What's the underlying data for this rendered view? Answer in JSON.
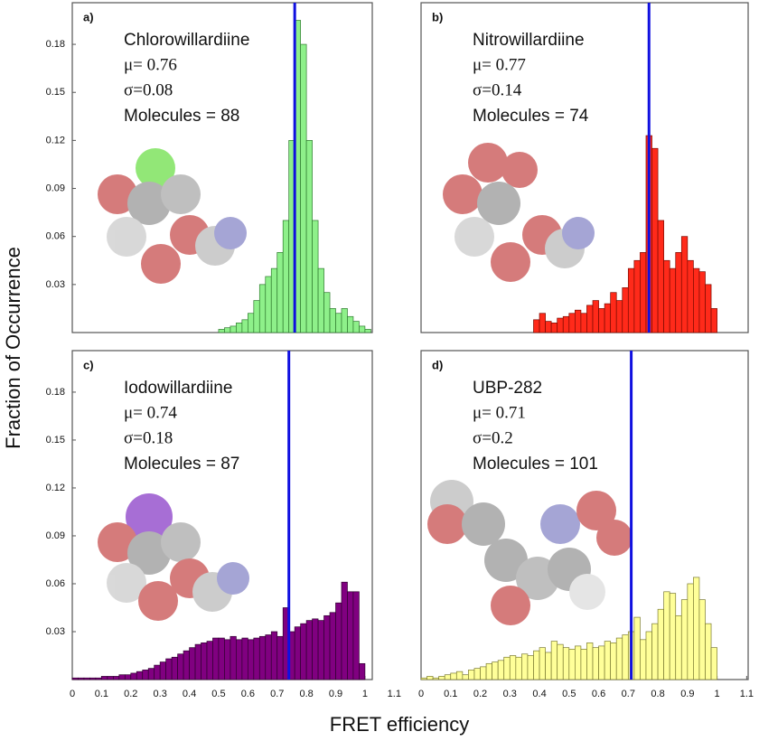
{
  "ylabel": "Fraction of Occurrence",
  "xlabel": "FRET efficiency",
  "chart_data": [
    {
      "type": "histogram",
      "panel": "a)",
      "lines": [
        "Chlorowillardiine",
        "μ= 0.76",
        "σ=0.08",
        "Molecules = 88"
      ],
      "color": "#8ef08a",
      "edge": "#2e7a2e",
      "vline": 0.76,
      "vline_color": "#1010e0",
      "bins": [
        0.5,
        0.52,
        0.54,
        0.56,
        0.58,
        0.6,
        0.62,
        0.64,
        0.66,
        0.68,
        0.7,
        0.72,
        0.74,
        0.76,
        0.78,
        0.8,
        0.82,
        0.84,
        0.86,
        0.88,
        0.9,
        0.92,
        0.94,
        0.96,
        0.98,
        1.0,
        1.02
      ],
      "values": [
        0.002,
        0.003,
        0.004,
        0.006,
        0.008,
        0.012,
        0.02,
        0.03,
        0.035,
        0.04,
        0.05,
        0.07,
        0.12,
        0.195,
        0.18,
        0.12,
        0.07,
        0.04,
        0.025,
        0.015,
        0.012,
        0.015,
        0.01,
        0.007,
        0.004,
        0.002
      ],
      "xlim": [
        0,
        1.025
      ],
      "ylim": [
        0,
        0.206
      ],
      "yticks": [
        0.03,
        0.06,
        0.09,
        0.12,
        0.15,
        0.18
      ]
    },
    {
      "type": "histogram",
      "panel": "b)",
      "lines": [
        "Nitrowillardiine",
        "μ= 0.77",
        "σ=0.14",
        "Molecules = 74"
      ],
      "color": "#ff2a1a",
      "edge": "#7a0a00",
      "vline": 0.77,
      "vline_color": "#1010e0",
      "bins": [
        0.38,
        0.4,
        0.42,
        0.44,
        0.46,
        0.48,
        0.5,
        0.52,
        0.54,
        0.56,
        0.58,
        0.6,
        0.62,
        0.64,
        0.66,
        0.68,
        0.7,
        0.72,
        0.74,
        0.76,
        0.78,
        0.8,
        0.82,
        0.84,
        0.86,
        0.88,
        0.9,
        0.92,
        0.94,
        0.96,
        0.98,
        1.0
      ],
      "values": [
        0.008,
        0.012,
        0.007,
        0.006,
        0.009,
        0.01,
        0.012,
        0.014,
        0.012,
        0.017,
        0.02,
        0.015,
        0.018,
        0.025,
        0.02,
        0.028,
        0.04,
        0.045,
        0.05,
        0.123,
        0.115,
        0.07,
        0.045,
        0.04,
        0.05,
        0.06,
        0.045,
        0.04,
        0.038,
        0.03,
        0.015
      ],
      "xlim": [
        0,
        1.105
      ],
      "ylim": [
        0,
        0.206
      ]
    },
    {
      "type": "histogram",
      "panel": "c)",
      "lines": [
        "Iodowillardiine",
        "μ= 0.74",
        "σ=0.18",
        "Molecules = 87"
      ],
      "color": "#800080",
      "edge": "#300030",
      "vline": 0.74,
      "vline_color": "#1010e0",
      "bins": [
        0,
        0.02,
        0.04,
        0.06,
        0.08,
        0.1,
        0.12,
        0.14,
        0.16,
        0.18,
        0.2,
        0.22,
        0.24,
        0.26,
        0.28,
        0.3,
        0.32,
        0.34,
        0.36,
        0.38,
        0.4,
        0.42,
        0.44,
        0.46,
        0.48,
        0.5,
        0.52,
        0.54,
        0.56,
        0.58,
        0.6,
        0.62,
        0.64,
        0.66,
        0.68,
        0.7,
        0.72,
        0.74,
        0.76,
        0.78,
        0.8,
        0.82,
        0.84,
        0.86,
        0.88,
        0.9,
        0.92,
        0.94,
        0.96,
        0.98,
        1.0
      ],
      "values": [
        0.001,
        0.001,
        0.001,
        0.001,
        0.001,
        0.002,
        0.002,
        0.002,
        0.003,
        0.003,
        0.004,
        0.005,
        0.006,
        0.007,
        0.009,
        0.011,
        0.013,
        0.014,
        0.016,
        0.018,
        0.02,
        0.022,
        0.023,
        0.024,
        0.026,
        0.026,
        0.025,
        0.027,
        0.025,
        0.026,
        0.025,
        0.026,
        0.027,
        0.028,
        0.03,
        0.027,
        0.045,
        0.03,
        0.033,
        0.035,
        0.037,
        0.038,
        0.037,
        0.04,
        0.042,
        0.048,
        0.061,
        0.055,
        0.055,
        0.01
      ],
      "xlim": [
        0,
        1.025
      ],
      "ylim": [
        0,
        0.206
      ],
      "xticks": [
        0,
        0.1,
        0.2,
        0.3,
        0.4,
        0.5,
        0.6,
        0.7,
        0.8,
        0.9,
        1,
        1.1
      ],
      "yticks": [
        0.03,
        0.06,
        0.09,
        0.12,
        0.15,
        0.18
      ]
    },
    {
      "type": "histogram",
      "panel": "d)",
      "lines": [
        "UBP-282",
        "μ= 0.71",
        "σ=0.2",
        "Molecules = 101"
      ],
      "color": "#ffff99",
      "edge": "#7a7a30",
      "vline": 0.71,
      "vline_color": "#1010e0",
      "bins": [
        0,
        0.02,
        0.04,
        0.06,
        0.08,
        0.1,
        0.12,
        0.14,
        0.16,
        0.18,
        0.2,
        0.22,
        0.24,
        0.26,
        0.28,
        0.3,
        0.32,
        0.34,
        0.36,
        0.38,
        0.4,
        0.42,
        0.44,
        0.46,
        0.48,
        0.5,
        0.52,
        0.54,
        0.56,
        0.58,
        0.6,
        0.62,
        0.64,
        0.66,
        0.68,
        0.7,
        0.72,
        0.74,
        0.76,
        0.78,
        0.8,
        0.82,
        0.84,
        0.86,
        0.88,
        0.9,
        0.92,
        0.94,
        0.96,
        0.98,
        1.0
      ],
      "values": [
        0.001,
        0.002,
        0.001,
        0.002,
        0.003,
        0.004,
        0.005,
        0.003,
        0.006,
        0.007,
        0.008,
        0.01,
        0.011,
        0.012,
        0.014,
        0.015,
        0.014,
        0.016,
        0.015,
        0.018,
        0.02,
        0.017,
        0.024,
        0.022,
        0.02,
        0.019,
        0.021,
        0.019,
        0.023,
        0.02,
        0.021,
        0.024,
        0.023,
        0.026,
        0.028,
        0.03,
        0.039,
        0.025,
        0.03,
        0.035,
        0.044,
        0.055,
        0.054,
        0.04,
        0.05,
        0.06,
        0.064,
        0.05,
        0.035,
        0.02
      ],
      "xlim": [
        0,
        1.105
      ],
      "ylim": [
        0,
        0.206
      ],
      "xticks": [
        0,
        0.1,
        0.2,
        0.3,
        0.4,
        0.5,
        0.6,
        0.7,
        0.8,
        0.9,
        1,
        1.1
      ]
    }
  ]
}
